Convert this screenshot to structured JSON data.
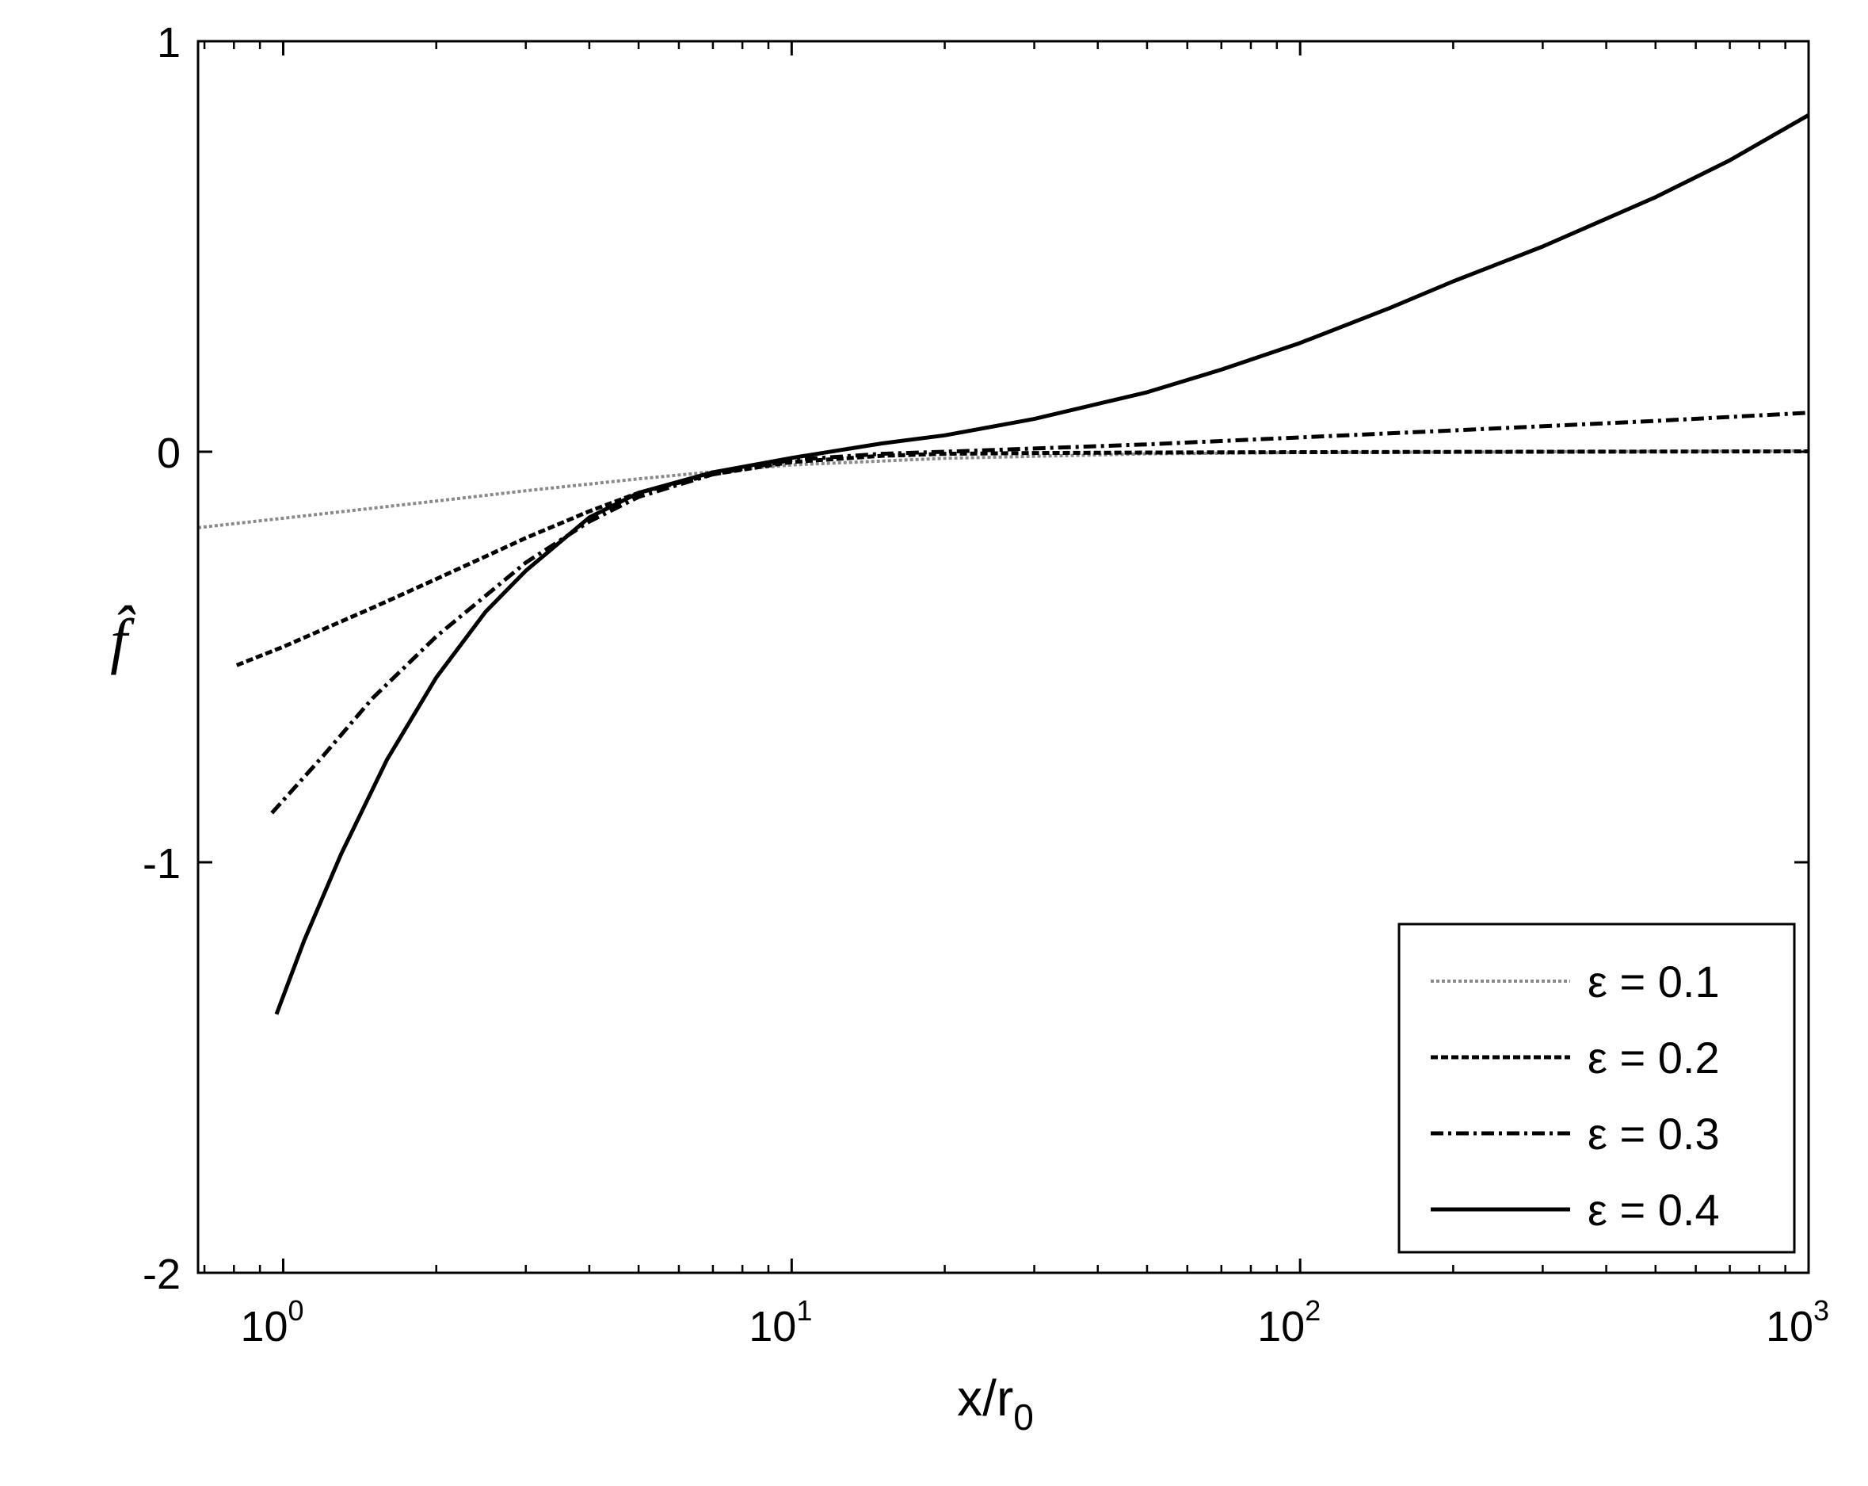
{
  "chart_data": {
    "type": "line",
    "xscale": "log",
    "xlim": [
      0.68,
      1000
    ],
    "ylim": [
      -2,
      1
    ],
    "xlabel": "x/r",
    "xlabel_sub": "0",
    "ylabel": "f̂",
    "grid": false,
    "legend_position": "bottom-right",
    "x_ticks": [
      {
        "base": "10",
        "exp": "0",
        "value": 1
      },
      {
        "base": "10",
        "exp": "1",
        "value": 10
      },
      {
        "base": "10",
        "exp": "2",
        "value": 100
      },
      {
        "base": "10",
        "exp": "3",
        "value": 1000
      }
    ],
    "y_ticks": [
      {
        "label": "1",
        "value": 1
      },
      {
        "label": "0",
        "value": 0
      },
      {
        "label": "-1",
        "value": -1
      },
      {
        "label": "-2",
        "value": -2
      }
    ],
    "series": [
      {
        "name": "ε = 0.1",
        "style": "dotted-gray",
        "color": "#8a8a8a",
        "x": [
          0.68,
          1,
          2,
          3,
          5,
          8,
          10,
          20,
          50,
          100,
          300,
          1000
        ],
        "y": [
          -0.185,
          -0.162,
          -0.12,
          -0.095,
          -0.066,
          -0.042,
          -0.032,
          -0.016,
          -0.005,
          -0.002,
          0.0,
          0.002
        ]
      },
      {
        "name": "ε = 0.2",
        "style": "dashed",
        "color": "#000000",
        "x": [
          0.81,
          1,
          1.5,
          2,
          3,
          4,
          5,
          7,
          10,
          15,
          20,
          30,
          50,
          100,
          300,
          1000
        ],
        "y": [
          -0.52,
          -0.475,
          -0.38,
          -0.31,
          -0.21,
          -0.145,
          -0.1,
          -0.055,
          -0.025,
          -0.01,
          -0.005,
          -0.003,
          -0.002,
          -0.001,
          0.0,
          0.001
        ]
      },
      {
        "name": "ε = 0.3",
        "style": "dashdot",
        "color": "#000000",
        "x": [
          0.95,
          1.2,
          1.5,
          2,
          3,
          4,
          5,
          7,
          10,
          15,
          20,
          30,
          50,
          100,
          200,
          500,
          1000
        ],
        "y": [
          -0.88,
          -0.74,
          -0.6,
          -0.45,
          -0.27,
          -0.17,
          -0.11,
          -0.055,
          -0.02,
          -0.005,
          0.0,
          0.008,
          0.018,
          0.035,
          0.052,
          0.075,
          0.095
        ]
      },
      {
        "name": "ε = 0.4",
        "style": "solid",
        "color": "#000000",
        "x": [
          0.97,
          1.1,
          1.3,
          1.6,
          2,
          2.5,
          3,
          4,
          5,
          7,
          10,
          15,
          20,
          30,
          50,
          70,
          100,
          150,
          200,
          300,
          500,
          700,
          1000
        ],
        "y": [
          -1.37,
          -1.19,
          -0.98,
          -0.75,
          -0.55,
          -0.39,
          -0.29,
          -0.16,
          -0.1,
          -0.05,
          -0.015,
          0.02,
          0.04,
          0.08,
          0.145,
          0.2,
          0.265,
          0.35,
          0.415,
          0.5,
          0.62,
          0.71,
          0.82
        ]
      }
    ]
  }
}
